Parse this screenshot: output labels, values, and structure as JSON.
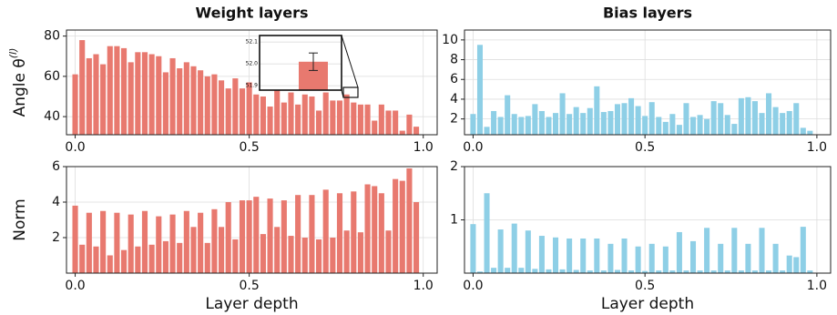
{
  "chart_data": [
    {
      "type": "bar",
      "title": "Weight layers",
      "ylabel": "Angle θ",
      "ylabel_superscript": "(l)",
      "color": "#e8796f",
      "grid": true,
      "x": [
        0,
        0.02,
        0.04,
        0.06,
        0.08,
        0.1,
        0.12,
        0.14,
        0.16,
        0.18,
        0.2,
        0.22,
        0.24,
        0.26,
        0.28,
        0.3,
        0.32,
        0.34,
        0.36,
        0.38,
        0.4,
        0.42,
        0.44,
        0.46,
        0.48,
        0.5,
        0.52,
        0.54,
        0.56,
        0.58,
        0.6,
        0.62,
        0.64,
        0.66,
        0.68,
        0.7,
        0.72,
        0.74,
        0.76,
        0.78,
        0.8,
        0.82,
        0.84,
        0.86,
        0.88,
        0.9,
        0.92,
        0.94,
        0.96,
        0.98
      ],
      "values": [
        61,
        78,
        69,
        71,
        66,
        75,
        75,
        74,
        67,
        72,
        72,
        71,
        70,
        62,
        69,
        64,
        67,
        65,
        63,
        60,
        61,
        58,
        54,
        59,
        54,
        57,
        51,
        50,
        45,
        53,
        47,
        52,
        46,
        51,
        50,
        43,
        52,
        48,
        48,
        51,
        47,
        46,
        46,
        38,
        46,
        43,
        43,
        33,
        41,
        35
      ],
      "xlim": [
        -0.025,
        1.04
      ],
      "xticks": [
        {
          "value": 0,
          "label": "0.0"
        },
        0.5,
        {
          "value": 1,
          "label": "1.0"
        }
      ],
      "ylim": [
        31,
        83
      ],
      "yticks": [
        40,
        60,
        80
      ],
      "inset": {
        "ylim": [
          51.88,
          52.13
        ],
        "yticks": [
          51.9,
          {
            "value": 52,
            "label": "52.0"
          },
          52.1
        ],
        "value": 52.01,
        "error": 0.04
      }
    },
    {
      "type": "bar",
      "title": "Bias layers",
      "color": "#8ecfe6",
      "grid": true,
      "x": [
        0,
        0.02,
        0.04,
        0.06,
        0.08,
        0.1,
        0.12,
        0.14,
        0.16,
        0.18,
        0.2,
        0.22,
        0.24,
        0.26,
        0.28,
        0.3,
        0.32,
        0.34,
        0.36,
        0.38,
        0.4,
        0.42,
        0.44,
        0.46,
        0.48,
        0.5,
        0.52,
        0.54,
        0.56,
        0.58,
        0.6,
        0.62,
        0.64,
        0.66,
        0.68,
        0.7,
        0.72,
        0.74,
        0.76,
        0.78,
        0.8,
        0.82,
        0.84,
        0.86,
        0.88,
        0.9,
        0.92,
        0.94,
        0.96,
        0.98
      ],
      "values": [
        2.5,
        9.5,
        1.2,
        2.8,
        2.2,
        4.4,
        2.5,
        2.2,
        2.3,
        3.5,
        2.8,
        2.2,
        2.6,
        4.6,
        2.5,
        3.2,
        2.6,
        3.1,
        5.3,
        2.7,
        2.8,
        3.5,
        3.6,
        4.1,
        3.3,
        2.3,
        3.7,
        2.2,
        1.7,
        2.5,
        1.4,
        3.6,
        2.2,
        2.4,
        2.0,
        3.8,
        3.6,
        2.4,
        1.5,
        4.1,
        4.2,
        3.8,
        2.6,
        4.6,
        3.2,
        2.6,
        2.8,
        3.6,
        1.1,
        0.8
      ],
      "xlim": [
        -0.025,
        1.04
      ],
      "xticks": [
        {
          "value": 0,
          "label": "0.0"
        },
        0.5,
        {
          "value": 1,
          "label": "1.0"
        }
      ],
      "ylim": [
        0.4,
        11
      ],
      "yticks": [
        2,
        4,
        6,
        8,
        10
      ]
    },
    {
      "type": "bar",
      "ylabel": "Norm",
      "xlabel": "Layer depth",
      "color": "#e8796f",
      "grid": true,
      "x": [
        0,
        0.02,
        0.04,
        0.06,
        0.08,
        0.1,
        0.12,
        0.14,
        0.16,
        0.18,
        0.2,
        0.22,
        0.24,
        0.26,
        0.28,
        0.3,
        0.32,
        0.34,
        0.36,
        0.38,
        0.4,
        0.42,
        0.44,
        0.46,
        0.48,
        0.5,
        0.52,
        0.54,
        0.56,
        0.58,
        0.6,
        0.62,
        0.64,
        0.66,
        0.68,
        0.7,
        0.72,
        0.74,
        0.76,
        0.78,
        0.8,
        0.82,
        0.84,
        0.86,
        0.88,
        0.9,
        0.92,
        0.94,
        0.96,
        0.98
      ],
      "values": [
        3.8,
        1.6,
        3.4,
        1.5,
        3.5,
        1.0,
        3.4,
        1.3,
        3.3,
        1.5,
        3.5,
        1.6,
        3.2,
        1.8,
        3.3,
        1.7,
        3.5,
        2.6,
        3.4,
        1.7,
        3.6,
        2.6,
        4.0,
        1.9,
        4.1,
        4.1,
        4.3,
        2.2,
        4.2,
        2.6,
        4.1,
        2.1,
        4.4,
        2.0,
        4.4,
        1.9,
        4.7,
        2.0,
        4.5,
        2.4,
        4.6,
        2.3,
        5.0,
        4.9,
        4.5,
        2.4,
        5.3,
        5.2,
        5.9,
        4.0
      ],
      "xlim": [
        -0.025,
        1.04
      ],
      "xticks": [
        {
          "value": 0,
          "label": "0.0"
        },
        0.5,
        {
          "value": 1,
          "label": "1.0"
        }
      ],
      "ylim": [
        0,
        6
      ],
      "yticks": [
        2,
        4,
        6
      ]
    },
    {
      "type": "bar",
      "xlabel": "Layer depth",
      "color": "#8ecfe6",
      "grid": true,
      "x": [
        0,
        0.02,
        0.04,
        0.06,
        0.08,
        0.1,
        0.12,
        0.14,
        0.16,
        0.18,
        0.2,
        0.22,
        0.24,
        0.26,
        0.28,
        0.3,
        0.32,
        0.34,
        0.36,
        0.38,
        0.4,
        0.42,
        0.44,
        0.46,
        0.48,
        0.5,
        0.52,
        0.54,
        0.56,
        0.58,
        0.6,
        0.62,
        0.64,
        0.66,
        0.68,
        0.7,
        0.72,
        0.74,
        0.76,
        0.78,
        0.8,
        0.82,
        0.84,
        0.86,
        0.88,
        0.9,
        0.92,
        0.94,
        0.96,
        0.98
      ],
      "values": [
        0.92,
        0.03,
        1.5,
        0.1,
        0.82,
        0.1,
        0.93,
        0.1,
        0.8,
        0.08,
        0.7,
        0.07,
        0.67,
        0.07,
        0.65,
        0.06,
        0.65,
        0.05,
        0.65,
        0.05,
        0.55,
        0.06,
        0.65,
        0.05,
        0.5,
        0.04,
        0.55,
        0.05,
        0.5,
        0.05,
        0.77,
        0.05,
        0.6,
        0.05,
        0.85,
        0.05,
        0.55,
        0.05,
        0.85,
        0.05,
        0.55,
        0.05,
        0.85,
        0.05,
        0.55,
        0.05,
        0.33,
        0.3,
        0.87,
        0.05
      ],
      "xlim": [
        -0.025,
        1.04
      ],
      "xticks": [
        {
          "value": 0,
          "label": "0.0"
        },
        0.5,
        {
          "value": 1,
          "label": "1.0"
        }
      ],
      "ylim": [
        0,
        2
      ],
      "yticks": [
        1,
        2
      ]
    }
  ]
}
